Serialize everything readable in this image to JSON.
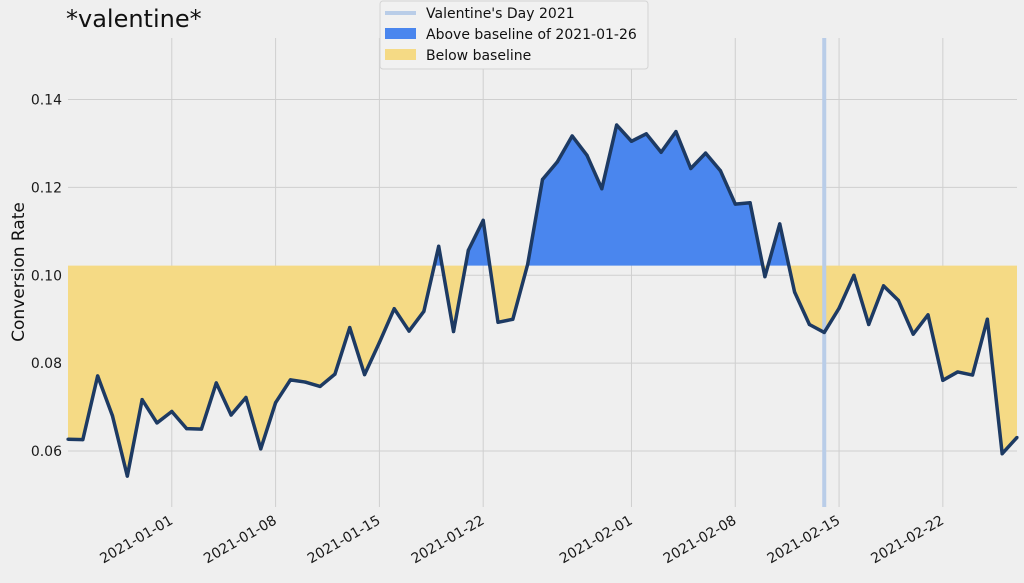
{
  "chart_data": {
    "type": "area",
    "title": "*valentine*",
    "xlabel": "",
    "ylabel": "Conversion Rate",
    "ylim": [
      0.05,
      0.154
    ],
    "yticks": [
      0.06,
      0.08,
      0.1,
      0.12,
      0.14
    ],
    "ytick_labels": [
      "0.06",
      "0.08",
      "0.10",
      "0.12",
      "0.14"
    ],
    "x_start": "2020-12-25",
    "x_end": "2021-02-27",
    "xtick_dates": [
      "2021-01-01",
      "2021-01-08",
      "2021-01-15",
      "2021-01-22",
      "2021-02-01",
      "2021-02-08",
      "2021-02-15",
      "2021-02-22"
    ],
    "xtick_labels": [
      "2021-01-01",
      "2021-01-08",
      "2021-01-15",
      "2021-01-22",
      "2021-02-01",
      "2021-02-08",
      "2021-02-15",
      "2021-02-22"
    ],
    "baseline": 0.1022,
    "baseline_date": "2021-01-26",
    "valentine_date": "2021-02-14",
    "series": [
      {
        "name": "Conversion Rate",
        "x": [
          "2020-12-25",
          "2020-12-26",
          "2020-12-27",
          "2020-12-28",
          "2020-12-29",
          "2020-12-30",
          "2020-12-31",
          "2021-01-01",
          "2021-01-02",
          "2021-01-03",
          "2021-01-04",
          "2021-01-05",
          "2021-01-06",
          "2021-01-07",
          "2021-01-08",
          "2021-01-09",
          "2021-01-10",
          "2021-01-11",
          "2021-01-12",
          "2021-01-13",
          "2021-01-14",
          "2021-01-15",
          "2021-01-16",
          "2021-01-17",
          "2021-01-18",
          "2021-01-19",
          "2021-01-20",
          "2021-01-21",
          "2021-01-22",
          "2021-01-23",
          "2021-01-24",
          "2021-01-25",
          "2021-01-26",
          "2021-01-27",
          "2021-01-28",
          "2021-01-29",
          "2021-01-30",
          "2021-01-31",
          "2021-02-01",
          "2021-02-02",
          "2021-02-03",
          "2021-02-04",
          "2021-02-05",
          "2021-02-06",
          "2021-02-07",
          "2021-02-08",
          "2021-02-09",
          "2021-02-10",
          "2021-02-11",
          "2021-02-12",
          "2021-02-13",
          "2021-02-14",
          "2021-02-15",
          "2021-02-16",
          "2021-02-17",
          "2021-02-18",
          "2021-02-19",
          "2021-02-20",
          "2021-02-21",
          "2021-02-22",
          "2021-02-23",
          "2021-02-24",
          "2021-02-25",
          "2021-02-26",
          "2021-02-27"
        ],
        "values": [
          0.0627,
          0.0626,
          0.0771,
          0.068,
          0.0543,
          0.0717,
          0.0664,
          0.069,
          0.0651,
          0.065,
          0.0755,
          0.0682,
          0.0722,
          0.0605,
          0.071,
          0.0762,
          0.0757,
          0.0747,
          0.0775,
          0.0881,
          0.0774,
          0.0847,
          0.0924,
          0.0873,
          0.0918,
          0.1066,
          0.0872,
          0.1057,
          0.1125,
          0.0893,
          0.09,
          0.1025,
          0.1218,
          0.1258,
          0.1317,
          0.1273,
          0.1197,
          0.1342,
          0.1305,
          0.1322,
          0.128,
          0.1327,
          0.1243,
          0.1278,
          0.1238,
          0.1162,
          0.1165,
          0.0997,
          0.1117,
          0.0962,
          0.0888,
          0.087,
          0.0925,
          0.1,
          0.0888,
          0.0976,
          0.0943,
          0.0866,
          0.091,
          0.0761,
          0.078,
          0.0773,
          0.09,
          0.0594,
          0.0631
        ]
      }
    ],
    "legend_position": "top-center",
    "legend": [
      {
        "label": "Valentine's Day 2021",
        "kind": "line",
        "color": "#b9cde8"
      },
      {
        "label": "Above baseline of 2021-01-26",
        "kind": "patch",
        "color": "#4a86ee"
      },
      {
        "label": "Below baseline",
        "kind": "patch",
        "color": "#f5da85"
      }
    ],
    "colors": {
      "line": "#1d3a63",
      "above_fill": "#4a86ee",
      "below_fill": "#f5da85",
      "valentine_line": "#b9cde8",
      "grid": "#cfcfcf",
      "background": "#efefef"
    }
  }
}
